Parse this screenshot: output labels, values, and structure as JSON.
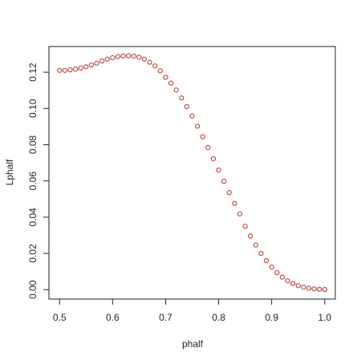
{
  "chart_data": {
    "type": "scatter",
    "x_label": "phalf",
    "y_label": "Lphalf",
    "color": "#b2312b",
    "x": [
      0.5,
      0.51,
      0.52,
      0.53,
      0.54,
      0.55,
      0.56,
      0.57,
      0.58,
      0.59,
      0.6,
      0.61,
      0.62,
      0.63,
      0.64,
      0.65,
      0.66,
      0.67,
      0.68,
      0.69,
      0.7,
      0.71,
      0.72,
      0.73,
      0.74,
      0.75,
      0.76,
      0.77,
      0.78,
      0.79,
      0.8,
      0.81,
      0.82,
      0.83,
      0.84,
      0.85,
      0.86,
      0.87,
      0.88,
      0.89,
      0.9,
      0.91,
      0.92,
      0.93,
      0.94,
      0.95,
      0.96,
      0.97,
      0.98,
      0.99,
      1.0
    ],
    "values": [
      0.121,
      0.121,
      0.1213,
      0.1217,
      0.1223,
      0.123,
      0.124,
      0.125,
      0.1262,
      0.1272,
      0.128,
      0.1286,
      0.129,
      0.1291,
      0.1289,
      0.1283,
      0.1272,
      0.1255,
      0.1235,
      0.1208,
      0.1172,
      0.114,
      0.1102,
      0.1058,
      0.101,
      0.0958,
      0.0902,
      0.0844,
      0.0784,
      0.0722,
      0.066,
      0.0598,
      0.0536,
      0.0476,
      0.0418,
      0.035,
      0.0296,
      0.0246,
      0.02,
      0.016,
      0.0124,
      0.0094,
      0.0069,
      0.0049,
      0.0034,
      0.0022,
      0.0014,
      0.0008,
      0.0004,
      0.0002,
      0.0001
    ],
    "xlim": [
      0.48,
      1.02
    ],
    "ylim": [
      -0.0052,
      0.1342
    ],
    "xticks": [
      0.5,
      0.6,
      0.7,
      0.8,
      0.9,
      {
        "value": 1.0,
        "label": "1.0"
      }
    ],
    "yticks": [
      {
        "value": 0,
        "label": "0.00"
      },
      0.02,
      0.04,
      0.06,
      0.08,
      {
        "value": 0.1,
        "label": "0.10"
      },
      0.12
    ]
  }
}
